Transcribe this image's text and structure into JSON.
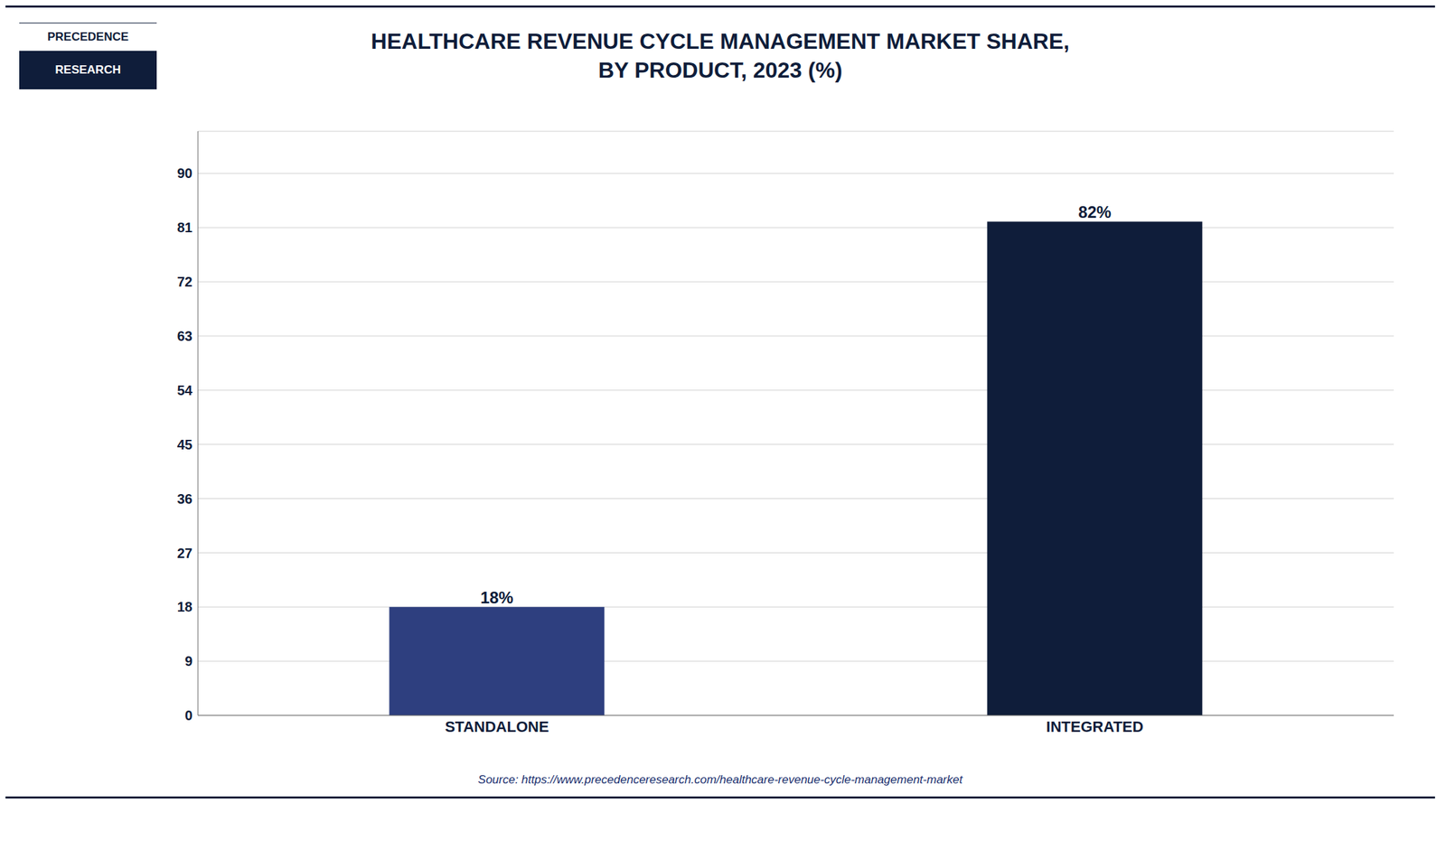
{
  "chart_data": {
    "type": "bar",
    "title": "HEALTHCARE REVENUE CYCLE MANAGEMENT MARKET SHARE,\nBY PRODUCT, 2023 (%)",
    "categories": [
      "STANDALONE",
      "INTEGRATED"
    ],
    "values": [
      18,
      82
    ],
    "value_labels": [
      "18%",
      "82%"
    ],
    "data_labels": true,
    "colors": [
      "#2e3f7f",
      "#0f1d3a"
    ],
    "ylim": [
      0,
      97
    ],
    "yticks": [
      0,
      9,
      18,
      27,
      36,
      45,
      54,
      63,
      72,
      81,
      90
    ],
    "grid": true,
    "annotations": [
      "Source: https://www.precedenceresearch.com/healthcare-revenue-cycle-management-market",
      "PRECEDENCE",
      "RESEARCH"
    ]
  }
}
